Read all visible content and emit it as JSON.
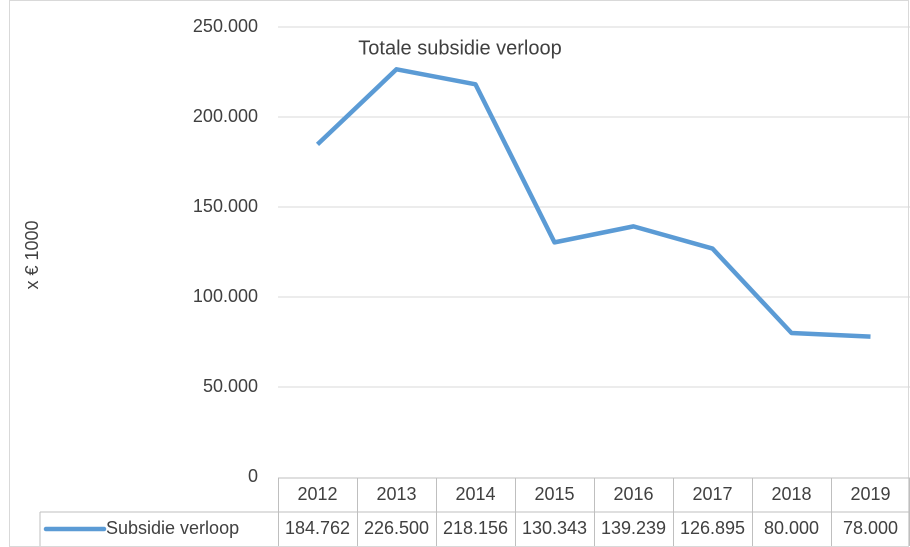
{
  "chart_data": {
    "type": "line",
    "title": "Totale subsidie verloop",
    "y_label": "x € 1000",
    "categories": [
      "2012",
      "2013",
      "2014",
      "2015",
      "2016",
      "2017",
      "2018",
      "2019"
    ],
    "series": [
      {
        "name": "Subsidie verloop",
        "color": "#5b9bd5",
        "values": [
          184762,
          226500,
          218156,
          130343,
          139239,
          126895,
          80000,
          78000
        ],
        "value_labels": [
          "184.762",
          "226.500",
          "218.156",
          "130.343",
          "139.239",
          "126.895",
          "80.000",
          "78.000"
        ]
      }
    ],
    "ylim": [
      0,
      250000
    ],
    "yticks": [
      0,
      {
        "value": 50000,
        "label": "50.000"
      },
      {
        "value": 100000,
        "label": "100.000"
      },
      {
        "value": 150000,
        "label": "150.000"
      },
      {
        "value": 200000,
        "label": "200.000"
      },
      {
        "value": 250000,
        "label": "250.000"
      }
    ],
    "grid": true
  }
}
